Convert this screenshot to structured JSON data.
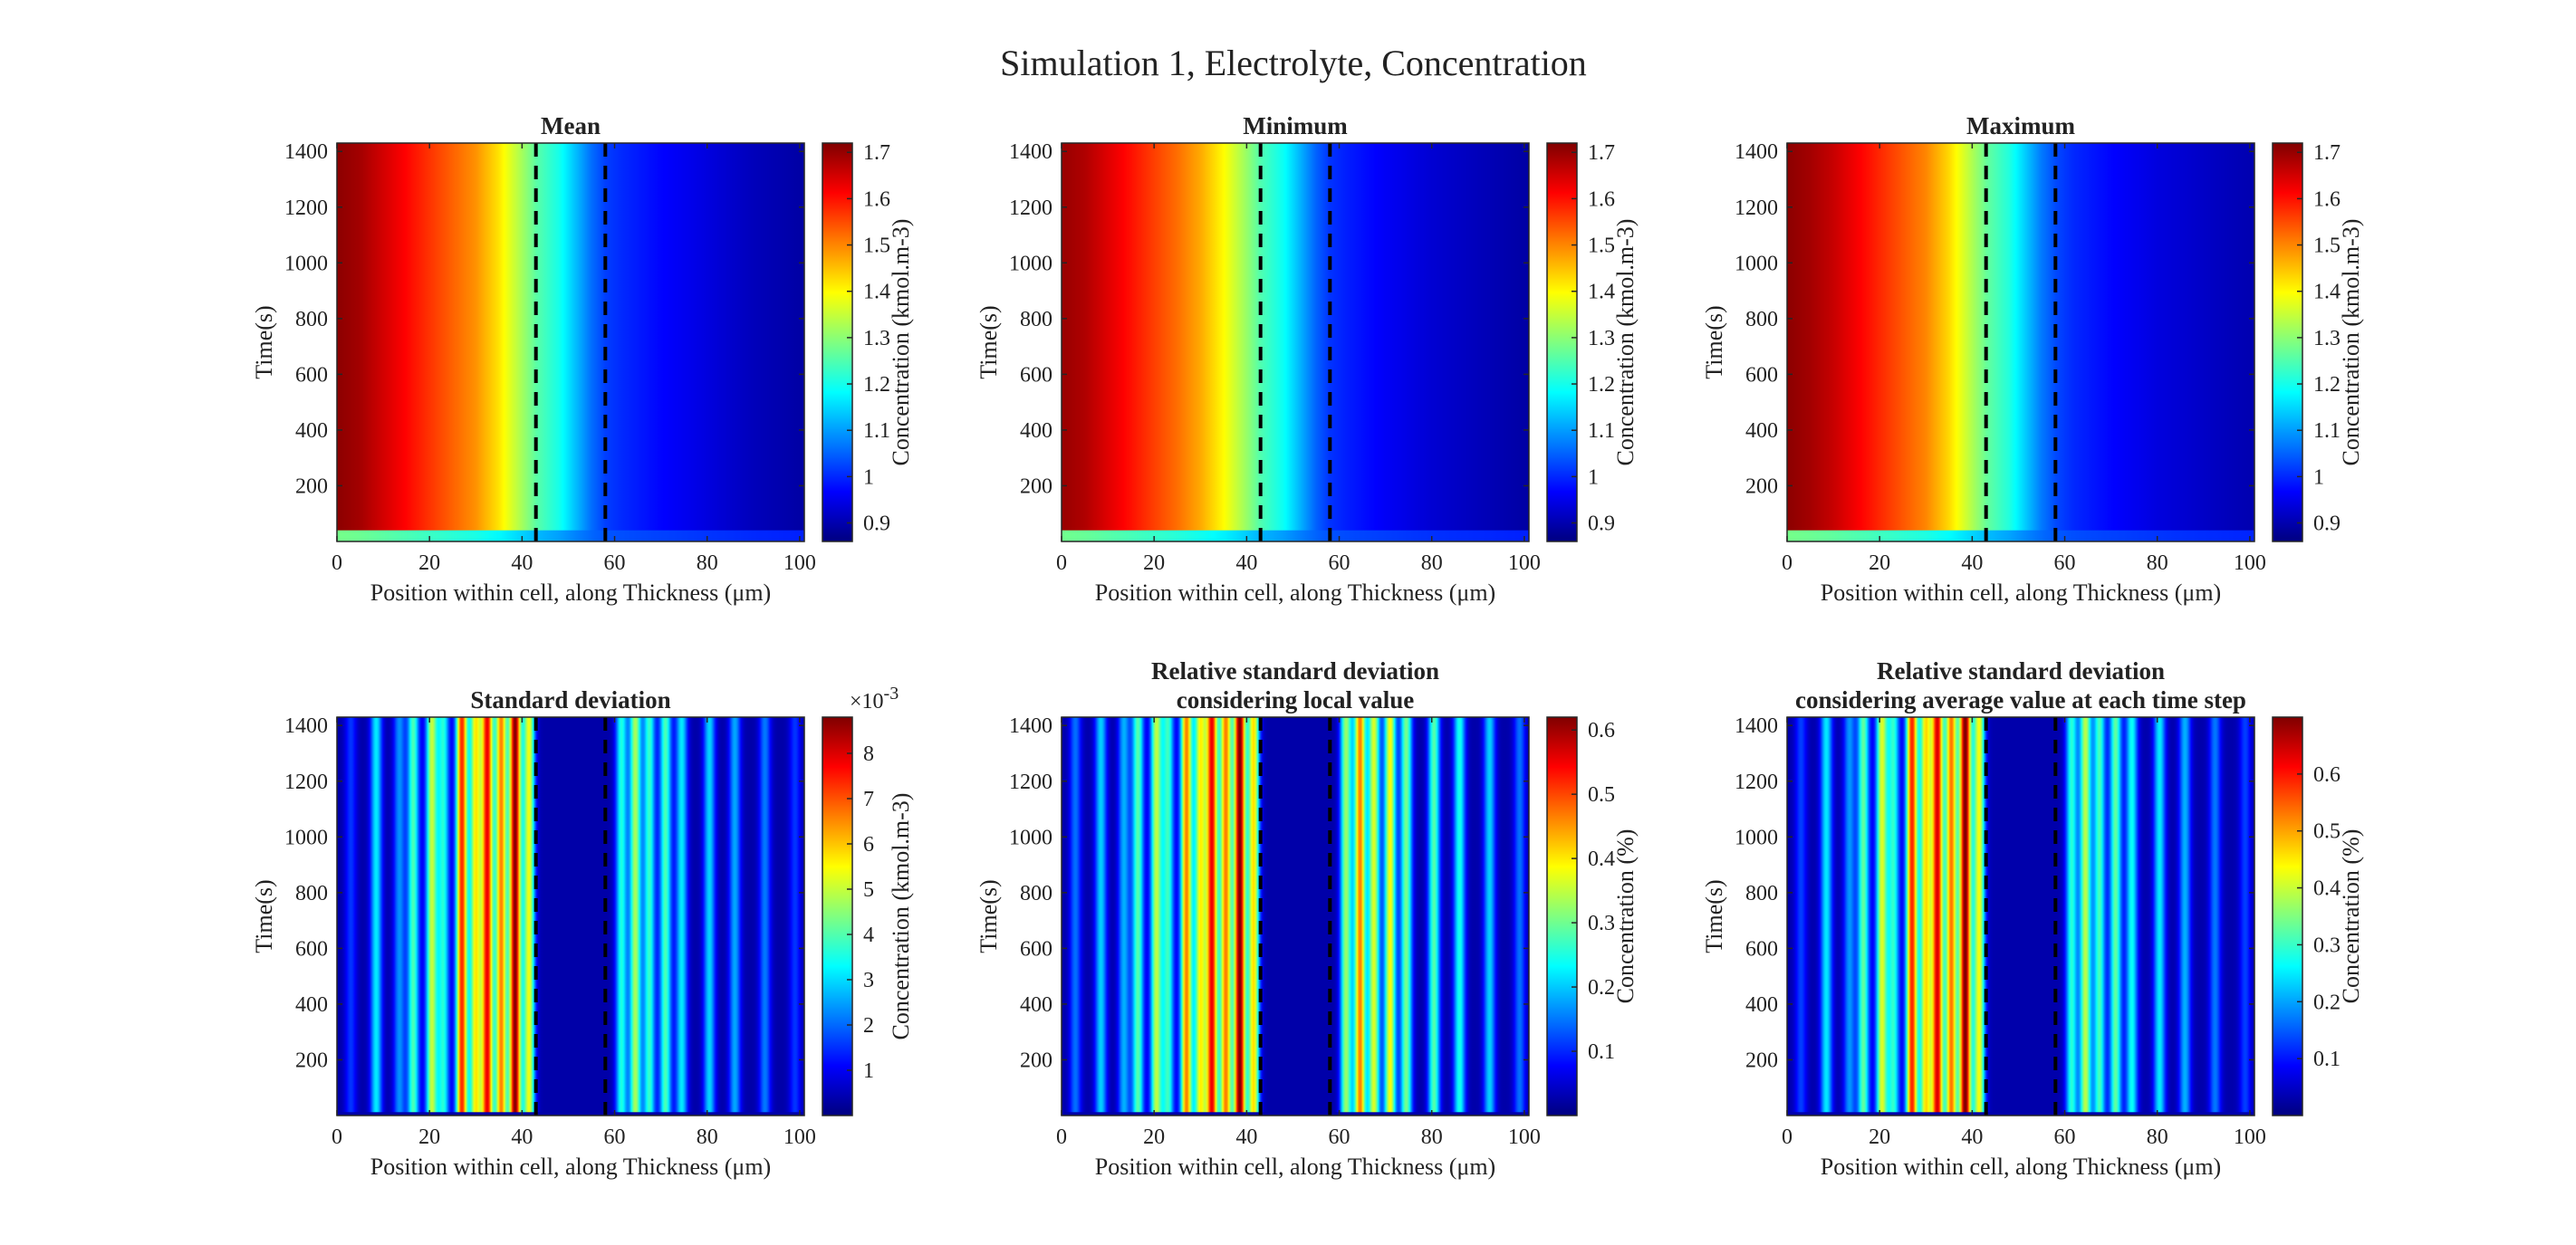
{
  "figure_title": "Simulation 1, Electrolyte, Concentration",
  "colors": {
    "colormap": "jet",
    "background": "#ffffff",
    "axis": "#262626",
    "separator_lines": "#000000"
  },
  "chart_data": [
    {
      "type": "heatmap",
      "title": [
        "Mean"
      ],
      "xlabel": "Position within cell, along Thickness (μm)",
      "ylabel": "Time(s)",
      "xlim": [
        0,
        101
      ],
      "ylim": [
        0,
        1430
      ],
      "xticks": [
        0,
        20,
        40,
        60,
        80,
        100
      ],
      "yticks": [
        200,
        400,
        600,
        800,
        1000,
        1200,
        1400
      ],
      "separators_x": [
        43,
        58
      ],
      "colorbar": {
        "label": "Concentration (kmol.m-3)",
        "range": [
          0.86,
          1.72
        ],
        "ticks": [
          0.9,
          1,
          1.1,
          1.2,
          1.3,
          1.4,
          1.5,
          1.6,
          1.7
        ],
        "tick_labels": [
          "0.9",
          "1",
          "1.1",
          "1.2",
          "1.3",
          "1.4",
          "1.5",
          "1.6",
          "1.7"
        ],
        "multiplier": ""
      },
      "field": "concentration_profile",
      "profile": {
        "x": [
          0,
          5,
          10,
          15,
          20,
          25,
          30,
          35,
          40,
          43,
          48,
          52,
          55,
          58,
          62,
          70,
          80,
          90,
          101
        ],
        "values": [
          1.71,
          1.69,
          1.65,
          1.61,
          1.57,
          1.53,
          1.49,
          1.42,
          1.32,
          1.26,
          1.2,
          1.12,
          1.06,
          1.02,
          1.0,
          0.97,
          0.94,
          0.91,
          0.89
        ]
      },
      "initial_value": 1.05,
      "transient_time": 40
    },
    {
      "type": "heatmap",
      "title": [
        "Minimum"
      ],
      "xlabel": "Position within cell, along Thickness (μm)",
      "ylabel": "Time(s)",
      "xlim": [
        0,
        101
      ],
      "ylim": [
        0,
        1430
      ],
      "xticks": [
        0,
        20,
        40,
        60,
        80,
        100
      ],
      "yticks": [
        200,
        400,
        600,
        800,
        1000,
        1200,
        1400
      ],
      "separators_x": [
        43,
        58
      ],
      "colorbar": {
        "label": "Concentration (kmol.m-3)",
        "range": [
          0.86,
          1.72
        ],
        "ticks": [
          0.9,
          1,
          1.1,
          1.2,
          1.3,
          1.4,
          1.5,
          1.6,
          1.7
        ],
        "tick_labels": [
          "0.9",
          "1",
          "1.1",
          "1.2",
          "1.3",
          "1.4",
          "1.5",
          "1.6",
          "1.7"
        ],
        "multiplier": ""
      },
      "field": "concentration_profile",
      "profile": {
        "x": [
          0,
          5,
          10,
          15,
          20,
          25,
          30,
          35,
          40,
          43,
          48,
          52,
          55,
          58,
          62,
          70,
          80,
          90,
          101
        ],
        "values": [
          1.7,
          1.68,
          1.64,
          1.6,
          1.56,
          1.52,
          1.47,
          1.4,
          1.31,
          1.25,
          1.19,
          1.11,
          1.05,
          1.01,
          0.99,
          0.96,
          0.93,
          0.91,
          0.89
        ]
      },
      "initial_value": 1.05,
      "transient_time": 40
    },
    {
      "type": "heatmap",
      "title": [
        "Maximum"
      ],
      "xlabel": "Position within cell, along Thickness (μm)",
      "ylabel": "Time(s)",
      "xlim": [
        0,
        101
      ],
      "ylim": [
        0,
        1430
      ],
      "xticks": [
        0,
        20,
        40,
        60,
        80,
        100
      ],
      "yticks": [
        200,
        400,
        600,
        800,
        1000,
        1200,
        1400
      ],
      "separators_x": [
        43,
        58
      ],
      "colorbar": {
        "label": "Concentration (kmol.m-3)",
        "range": [
          0.86,
          1.72
        ],
        "ticks": [
          0.9,
          1,
          1.1,
          1.2,
          1.3,
          1.4,
          1.5,
          1.6,
          1.7
        ],
        "tick_labels": [
          "0.9",
          "1",
          "1.1",
          "1.2",
          "1.3",
          "1.4",
          "1.5",
          "1.6",
          "1.7"
        ],
        "multiplier": ""
      },
      "field": "concentration_profile",
      "profile": {
        "x": [
          0,
          5,
          10,
          15,
          20,
          25,
          30,
          35,
          40,
          43,
          48,
          52,
          55,
          58,
          62,
          70,
          80,
          90,
          101
        ],
        "values": [
          1.71,
          1.69,
          1.66,
          1.62,
          1.58,
          1.54,
          1.5,
          1.43,
          1.33,
          1.27,
          1.21,
          1.13,
          1.07,
          1.03,
          1.0,
          0.97,
          0.94,
          0.92,
          0.9
        ]
      },
      "initial_value": 1.05,
      "transient_time": 40
    },
    {
      "type": "heatmap",
      "title": [
        "Standard deviation"
      ],
      "xlabel": "Position within cell, along Thickness (μm)",
      "ylabel": "Time(s)",
      "xlim": [
        0,
        101
      ],
      "ylim": [
        0,
        1430
      ],
      "xticks": [
        0,
        20,
        40,
        60,
        80,
        100
      ],
      "yticks": [
        200,
        400,
        600,
        800,
        1000,
        1200,
        1400
      ],
      "separators_x": [
        43,
        58
      ],
      "colorbar": {
        "label": "Concentration (kmol.m-3)",
        "range": [
          0,
          8.8
        ],
        "ticks": [
          1,
          2,
          3,
          4,
          5,
          6,
          7,
          8
        ],
        "tick_labels": [
          "1",
          "2",
          "3",
          "4",
          "5",
          "6",
          "7",
          "8"
        ],
        "multiplier": "×10-3"
      },
      "field": "stripes",
      "background_value": 0.35,
      "stripe_width": 0.9,
      "stripes": [
        {
          "x": 3,
          "amp": 1.2
        },
        {
          "x": 8.5,
          "amp": 2.8
        },
        {
          "x": 13.5,
          "amp": 2.0
        },
        {
          "x": 16.5,
          "amp": 3.6
        },
        {
          "x": 20.5,
          "amp": 4.6
        },
        {
          "x": 23,
          "amp": 3.2
        },
        {
          "x": 27,
          "amp": 7.0
        },
        {
          "x": 30,
          "amp": 5.2
        },
        {
          "x": 32.5,
          "amp": 7.4
        },
        {
          "x": 35.5,
          "amp": 6.2
        },
        {
          "x": 38.5,
          "amp": 8.4
        },
        {
          "x": 41.5,
          "amp": 5.0
        },
        {
          "x": 61.5,
          "amp": 3.2
        },
        {
          "x": 64.5,
          "amp": 4.4
        },
        {
          "x": 67.5,
          "amp": 3.4
        },
        {
          "x": 71,
          "amp": 3.6
        },
        {
          "x": 74.5,
          "amp": 2.8
        },
        {
          "x": 80.5,
          "amp": 2.6
        },
        {
          "x": 86,
          "amp": 2.2
        },
        {
          "x": 92.5,
          "amp": 1.8
        },
        {
          "x": 99,
          "amp": 1.2
        }
      ]
    },
    {
      "type": "heatmap",
      "title": [
        "Relative standard deviation",
        "considering local value"
      ],
      "xlabel": "Position within cell, along Thickness (μm)",
      "ylabel": "Time(s)",
      "xlim": [
        0,
        101
      ],
      "ylim": [
        0,
        1430
      ],
      "xticks": [
        0,
        20,
        40,
        60,
        80,
        100
      ],
      "yticks": [
        200,
        400,
        600,
        800,
        1000,
        1200,
        1400
      ],
      "separators_x": [
        43,
        58
      ],
      "colorbar": {
        "label": "Concentration (%)",
        "range": [
          0,
          0.62
        ],
        "ticks": [
          0.1,
          0.2,
          0.3,
          0.4,
          0.5,
          0.6
        ],
        "tick_labels": [
          "0.1",
          "0.2",
          "0.3",
          "0.4",
          "0.5",
          "0.6"
        ],
        "multiplier": ""
      },
      "field": "stripes",
      "background_value": 0.025,
      "stripe_width": 0.9,
      "stripes": [
        {
          "x": 3,
          "amp": 0.12
        },
        {
          "x": 8.5,
          "amp": 0.18
        },
        {
          "x": 13.5,
          "amp": 0.16
        },
        {
          "x": 16.5,
          "amp": 0.26
        },
        {
          "x": 20.5,
          "amp": 0.32
        },
        {
          "x": 23,
          "amp": 0.24
        },
        {
          "x": 27,
          "amp": 0.44
        },
        {
          "x": 30,
          "amp": 0.36
        },
        {
          "x": 32.5,
          "amp": 0.52
        },
        {
          "x": 35.5,
          "amp": 0.44
        },
        {
          "x": 38.5,
          "amp": 0.6
        },
        {
          "x": 41.5,
          "amp": 0.38
        },
        {
          "x": 61.5,
          "amp": 0.3
        },
        {
          "x": 64.5,
          "amp": 0.44
        },
        {
          "x": 67.5,
          "amp": 0.34
        },
        {
          "x": 71,
          "amp": 0.36
        },
        {
          "x": 74.5,
          "amp": 0.28
        },
        {
          "x": 80.5,
          "amp": 0.26
        },
        {
          "x": 86,
          "amp": 0.22
        },
        {
          "x": 92.5,
          "amp": 0.18
        },
        {
          "x": 99,
          "amp": 0.12
        }
      ]
    },
    {
      "type": "heatmap",
      "title": [
        "Relative standard deviation",
        "considering average value at each time step"
      ],
      "xlabel": "Position within cell, along Thickness (μm)",
      "ylabel": "Time(s)",
      "xlim": [
        0,
        101
      ],
      "ylim": [
        0,
        1430
      ],
      "xticks": [
        0,
        20,
        40,
        60,
        80,
        100
      ],
      "yticks": [
        200,
        400,
        600,
        800,
        1000,
        1200,
        1400
      ],
      "separators_x": [
        43,
        58
      ],
      "colorbar": {
        "label": "Concentration (%)",
        "range": [
          0,
          0.7
        ],
        "ticks": [
          0.1,
          0.2,
          0.3,
          0.4,
          0.5,
          0.6
        ],
        "tick_labels": [
          "0.1",
          "0.2",
          "0.3",
          "0.4",
          "0.5",
          "0.6"
        ],
        "multiplier": ""
      },
      "field": "stripes",
      "background_value": 0.03,
      "stripe_width": 0.9,
      "stripes": [
        {
          "x": 3,
          "amp": 0.1
        },
        {
          "x": 8.5,
          "amp": 0.22
        },
        {
          "x": 13.5,
          "amp": 0.16
        },
        {
          "x": 16.5,
          "amp": 0.3
        },
        {
          "x": 20.5,
          "amp": 0.38
        },
        {
          "x": 23,
          "amp": 0.26
        },
        {
          "x": 27,
          "amp": 0.56
        },
        {
          "x": 30,
          "amp": 0.42
        },
        {
          "x": 32.5,
          "amp": 0.6
        },
        {
          "x": 35.5,
          "amp": 0.5
        },
        {
          "x": 38.5,
          "amp": 0.68
        },
        {
          "x": 41.5,
          "amp": 0.4
        },
        {
          "x": 61.5,
          "amp": 0.26
        },
        {
          "x": 64.5,
          "amp": 0.36
        },
        {
          "x": 67.5,
          "amp": 0.28
        },
        {
          "x": 71,
          "amp": 0.3
        },
        {
          "x": 74.5,
          "amp": 0.24
        },
        {
          "x": 80.5,
          "amp": 0.22
        },
        {
          "x": 86,
          "amp": 0.18
        },
        {
          "x": 92.5,
          "amp": 0.14
        },
        {
          "x": 99,
          "amp": 0.1
        }
      ]
    }
  ]
}
